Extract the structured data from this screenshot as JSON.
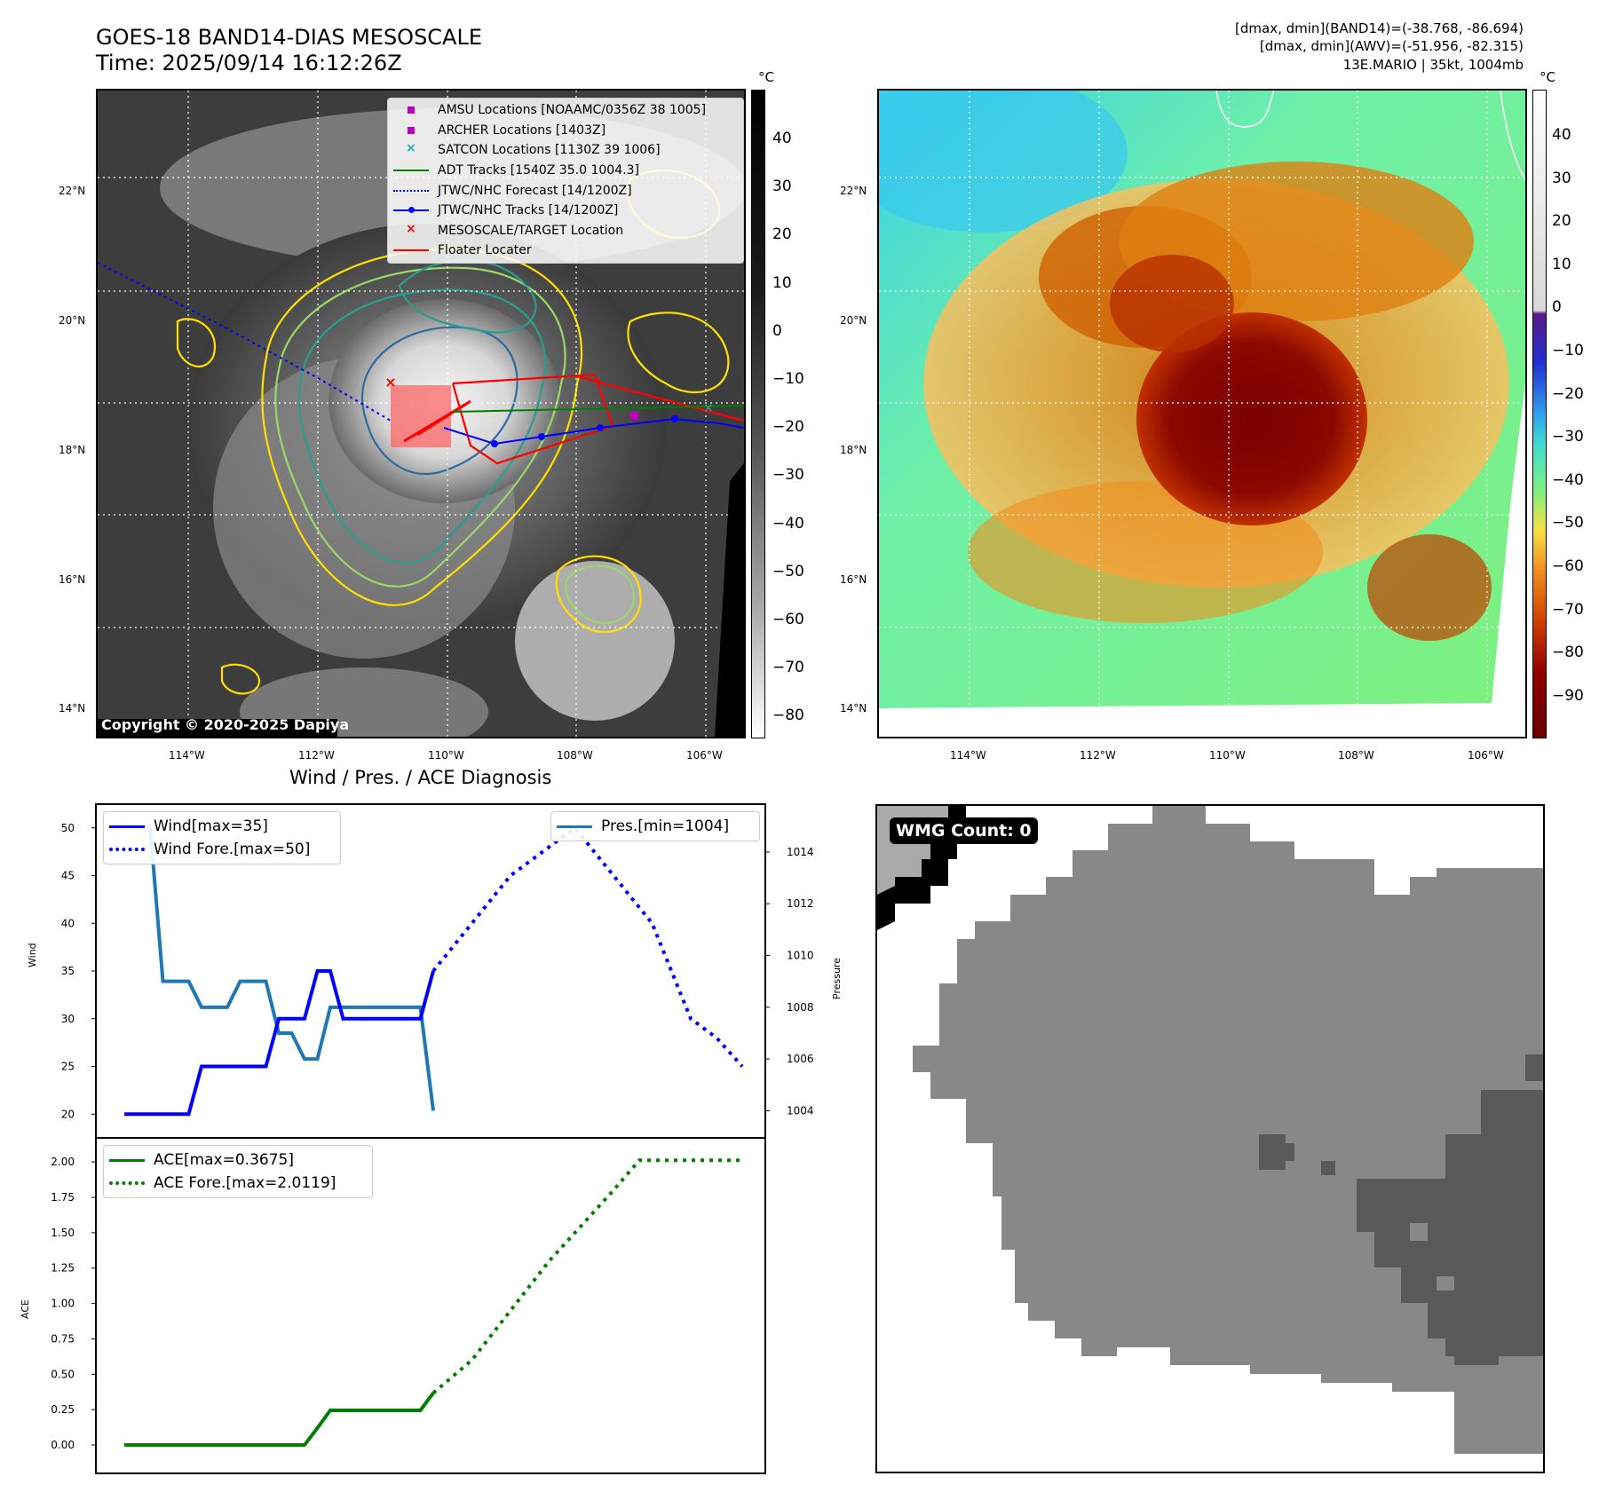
{
  "header": {
    "title_line1": "GOES-18 BAND14-DIAS MESOSCALE",
    "title_line2": "Time: 2025/09/14 16:12:26Z",
    "info_line1": "[dmax, dmin](BAND14)=(-38.768, -86.694)",
    "info_line2": "[dmax, dmin](AWV)=(-51.956, -82.315)",
    "info_line3": "13E.MARIO | 35kt, 1004mb"
  },
  "map": {
    "lat_labels": [
      "22°N",
      "20°N",
      "18°N",
      "16°N",
      "14°N"
    ],
    "lon_labels": [
      "114°W",
      "112°W",
      "110°W",
      "108°W",
      "106°W"
    ],
    "copyright": "Copyright © 2020-2025 Dapiya",
    "legend": [
      {
        "label": "AMSU Locations [NOAAMC/0356Z 38 1005]",
        "marker": "square",
        "color": "#c000c0"
      },
      {
        "label": "ARCHER Locations [1403Z]",
        "marker": "square",
        "color": "#c000c0"
      },
      {
        "label": "SATCON Locations [1130Z 39 1006]",
        "marker": "x",
        "color": "#20b2aa"
      },
      {
        "label": "ADT Tracks [1540Z 35.0 1004.3]",
        "marker": "line",
        "color": "#008000"
      },
      {
        "label": "JTWC/NHC Forecast [14/1200Z]",
        "marker": "dotted",
        "color": "#0000ff"
      },
      {
        "label": "JTWC/NHC Tracks [14/1200Z]",
        "marker": "line-dot",
        "color": "#0000ff"
      },
      {
        "label": "MESOSCALE/TARGET Location",
        "marker": "x",
        "color": "#ff0000"
      },
      {
        "label": "Floater Locater",
        "marker": "line",
        "color": "#ff0000"
      }
    ],
    "colorbar_left": {
      "unit": "°C",
      "ticks": [
        "40",
        "30",
        "20",
        "10",
        "0",
        "−10",
        "−20",
        "−30",
        "−40",
        "−50",
        "−60",
        "−70",
        "−80"
      ]
    },
    "colorbar_right": {
      "unit": "°C",
      "ticks": [
        "40",
        "30",
        "20",
        "10",
        "0",
        "−10",
        "−20",
        "−30",
        "−40",
        "−50",
        "−60",
        "−70",
        "−80",
        "−90"
      ]
    }
  },
  "diagnosis": {
    "title": "Wind / Pres. / ACE Diagnosis",
    "wind_ylabel": "Wind",
    "pressure_ylabel": "Pressure",
    "ace_ylabel": "ACE",
    "legend_wind": "Wind[max=35]",
    "legend_wind_fore": "Wind Fore.[max=50]",
    "legend_pres": "Pres.[min=1004]",
    "legend_ace": "ACE[max=0.3675]",
    "legend_ace_fore": "ACE Fore.[max=2.0119]",
    "wind_ticks": [
      "50",
      "45",
      "40",
      "35",
      "30",
      "25",
      "20"
    ],
    "pres_ticks": [
      "1014",
      "1012",
      "1010",
      "1008",
      "1006",
      "1004"
    ],
    "ace_ticks": [
      "2.00",
      "1.75",
      "1.50",
      "1.25",
      "1.00",
      "0.75",
      "0.50",
      "0.25",
      "0.00"
    ]
  },
  "wmg": {
    "label": "WMG Count: 0"
  },
  "colors": {
    "wind": "#0000ff",
    "pressure": "#1f77b4",
    "ace": "#008000",
    "floater": "#ff0000",
    "ir_contour": "#ffe000"
  },
  "chart_data": [
    {
      "type": "line",
      "title": "Wind / Pres. / ACE Diagnosis",
      "ylabel": "Wind",
      "ylabel_right": "Pressure",
      "ylim": [
        19,
        51
      ],
      "ylim_right": [
        1003.5,
        1015.3
      ],
      "series": [
        {
          "name": "Wind[max=35]",
          "x": [
            0,
            1,
            2,
            3,
            4,
            5,
            6,
            7,
            8,
            9,
            10,
            11,
            12,
            13,
            14,
            15,
            16,
            17,
            18,
            19,
            20,
            21,
            22,
            23,
            24
          ],
          "values": [
            20,
            20,
            20,
            20,
            20,
            20,
            25,
            25,
            25,
            25,
            25,
            25,
            30,
            30,
            30,
            35,
            35,
            30,
            30,
            30,
            30,
            30,
            30,
            30,
            35
          ]
        },
        {
          "name": "Wind Fore.[max=50]",
          "x": [
            24,
            30,
            35,
            41,
            44,
            46,
            48
          ],
          "values": [
            35,
            45,
            50,
            40,
            30,
            28,
            25
          ]
        },
        {
          "name": "Pres.[min=1004]",
          "axis": "right",
          "x": [
            0,
            1,
            2,
            3,
            4,
            5,
            6,
            7,
            8,
            9,
            10,
            11,
            12,
            13,
            14,
            15,
            16,
            17,
            18,
            19,
            20,
            21,
            22,
            23,
            24
          ],
          "values": [
            1015,
            1015,
            1015,
            1009,
            1009,
            1009,
            1008,
            1008,
            1008,
            1009,
            1009,
            1009,
            1007,
            1007,
            1006,
            1006,
            1008,
            1008,
            1008,
            1008,
            1008,
            1008,
            1008,
            1008,
            1004
          ]
        }
      ]
    },
    {
      "type": "line",
      "ylabel": "ACE",
      "ylim": [
        -0.1,
        2.07
      ],
      "series": [
        {
          "name": "ACE[max=0.3675]",
          "x": [
            0,
            5,
            10,
            14,
            15,
            16,
            17,
            18,
            19,
            20,
            21,
            22,
            23,
            24
          ],
          "values": [
            0,
            0,
            0,
            0,
            0.12,
            0.245,
            0.245,
            0.245,
            0.245,
            0.245,
            0.245,
            0.245,
            0.245,
            0.3675
          ]
        },
        {
          "name": "ACE Fore.[max=2.0119]",
          "x": [
            24,
            27,
            30,
            33,
            36,
            38,
            40,
            42,
            44,
            46,
            48
          ],
          "values": [
            0.3675,
            0.6,
            0.95,
            1.3,
            1.6,
            1.8,
            2.0119,
            2.0119,
            2.0119,
            2.0119,
            2.0119
          ]
        }
      ]
    }
  ]
}
